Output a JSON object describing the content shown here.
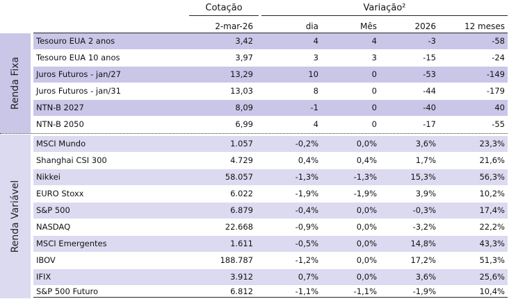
{
  "header": {
    "group_cotacao": "Cotação",
    "group_variacao": "Variação²",
    "col_date": "2-mar-26",
    "col_dia": "dia",
    "col_mes": "Mês",
    "col_ano": "2026",
    "col_12m": "12 meses"
  },
  "sections": {
    "fixa_label": "Renda Fixa",
    "variavel_label": "Renda Variável"
  },
  "rows": [
    {
      "name": "Tesouro EUA 2 anos",
      "cot": "3,42",
      "dia": "4",
      "mes": "4",
      "ano": "-3",
      "m12": "-58"
    },
    {
      "name": "Tesouro EUA 10 anos",
      "cot": "3,97",
      "dia": "3",
      "mes": "3",
      "ano": "-15",
      "m12": "-24"
    },
    {
      "name": "Juros Futuros - jan/27",
      "cot": "13,29",
      "dia": "10",
      "mes": "0",
      "ano": "-53",
      "m12": "-149"
    },
    {
      "name": "Juros Futuros - jan/31",
      "cot": "13,03",
      "dia": "8",
      "mes": "0",
      "ano": "-44",
      "m12": "-179"
    },
    {
      "name": "NTN-B 2027",
      "cot": "8,09",
      "dia": "-1",
      "mes": "0",
      "ano": "-40",
      "m12": "40"
    },
    {
      "name": "NTN-B 2050",
      "cot": "6,99",
      "dia": "4",
      "mes": "0",
      "ano": "-17",
      "m12": "-55"
    },
    {
      "name": "MSCI Mundo",
      "cot": "1.057",
      "dia": "-0,2%",
      "mes": "0,0%",
      "ano": "3,6%",
      "m12": "23,3%"
    },
    {
      "name": "Shanghai CSI 300",
      "cot": "4.729",
      "dia": "0,4%",
      "mes": "0,4%",
      "ano": "1,7%",
      "m12": "21,6%"
    },
    {
      "name": "Nikkei",
      "cot": "58.057",
      "dia": "-1,3%",
      "mes": "-1,3%",
      "ano": "15,3%",
      "m12": "56,3%"
    },
    {
      "name": "EURO Stoxx",
      "cot": "6.022",
      "dia": "-1,9%",
      "mes": "-1,9%",
      "ano": "3,9%",
      "m12": "10,2%"
    },
    {
      "name": "S&P 500",
      "cot": "6.879",
      "dia": "-0,4%",
      "mes": "0,0%",
      "ano": "-0,3%",
      "m12": "17,4%"
    },
    {
      "name": "NASDAQ",
      "cot": "22.668",
      "dia": "-0,9%",
      "mes": "0,0%",
      "ano": "-3,2%",
      "m12": "22,2%"
    },
    {
      "name": "MSCI Emergentes",
      "cot": "1.611",
      "dia": "-0,5%",
      "mes": "0,0%",
      "ano": "14,8%",
      "m12": "43,3%"
    },
    {
      "name": "IBOV",
      "cot": "188.787",
      "dia": "-1,2%",
      "mes": "0,0%",
      "ano": "17,2%",
      "m12": "51,3%"
    },
    {
      "name": "IFIX",
      "cot": "3.912",
      "dia": "0,7%",
      "mes": "0,0%",
      "ano": "3,6%",
      "m12": "25,6%"
    },
    {
      "name": "S&P 500 Futuro",
      "cot": "6.812",
      "dia": "-1,1%",
      "mes": "-1,1%",
      "ano": "-1,9%",
      "m12": "10,4%"
    }
  ]
}
